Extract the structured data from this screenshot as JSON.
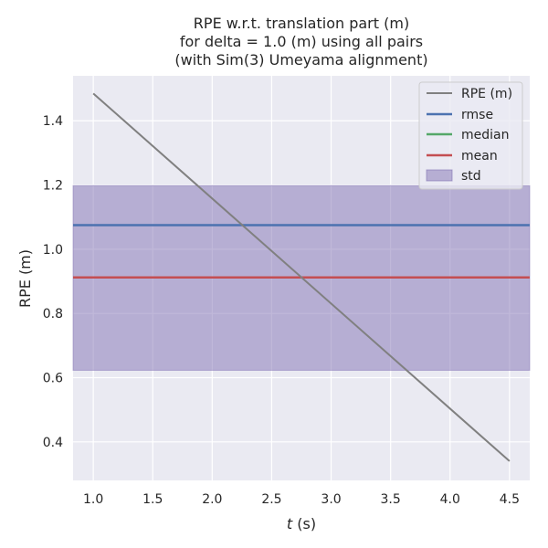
{
  "chart_data": {
    "type": "line",
    "title_lines": [
      "RPE w.r.t. translation part (m)",
      "for delta = 1.0 (m) using all pairs",
      "(with Sim(3) Umeyama alignment)"
    ],
    "xlabel_italic": "t",
    "xlabel_rest": " (s)",
    "ylabel": "RPE (m)",
    "xlim": [
      0.83,
      4.67
    ],
    "ylim": [
      0.28,
      1.54
    ],
    "xticks": [
      1.0,
      1.5,
      2.0,
      2.5,
      3.0,
      3.5,
      4.0,
      4.5
    ],
    "yticks": [
      0.4,
      0.6,
      0.8,
      1.0,
      1.2,
      1.4
    ],
    "xtick_labels": [
      "1.0",
      "1.5",
      "2.0",
      "2.5",
      "3.0",
      "3.5",
      "4.0",
      "4.5"
    ],
    "ytick_labels": [
      "0.4",
      "0.6",
      "0.8",
      "1.0",
      "1.2",
      "1.4"
    ],
    "grid": true,
    "legend_position": "top-right",
    "series": [
      {
        "name": "RPE (m)",
        "color": "#808080",
        "x": [
          1.0,
          4.5
        ],
        "y": [
          1.485,
          0.34
        ]
      }
    ],
    "stats": {
      "rmse": {
        "name": "rmse",
        "value": 1.075,
        "color": "#4c72b0"
      },
      "median": {
        "name": "median",
        "value": 0.912,
        "color": "#55a868"
      },
      "mean": {
        "name": "mean",
        "value": 0.912,
        "color": "#c44e52"
      },
      "std": {
        "name": "std",
        "range": [
          0.623,
          1.198
        ],
        "color": "#8172b3"
      }
    },
    "legend": [
      "RPE (m)",
      "rmse",
      "median",
      "mean",
      "std"
    ]
  }
}
